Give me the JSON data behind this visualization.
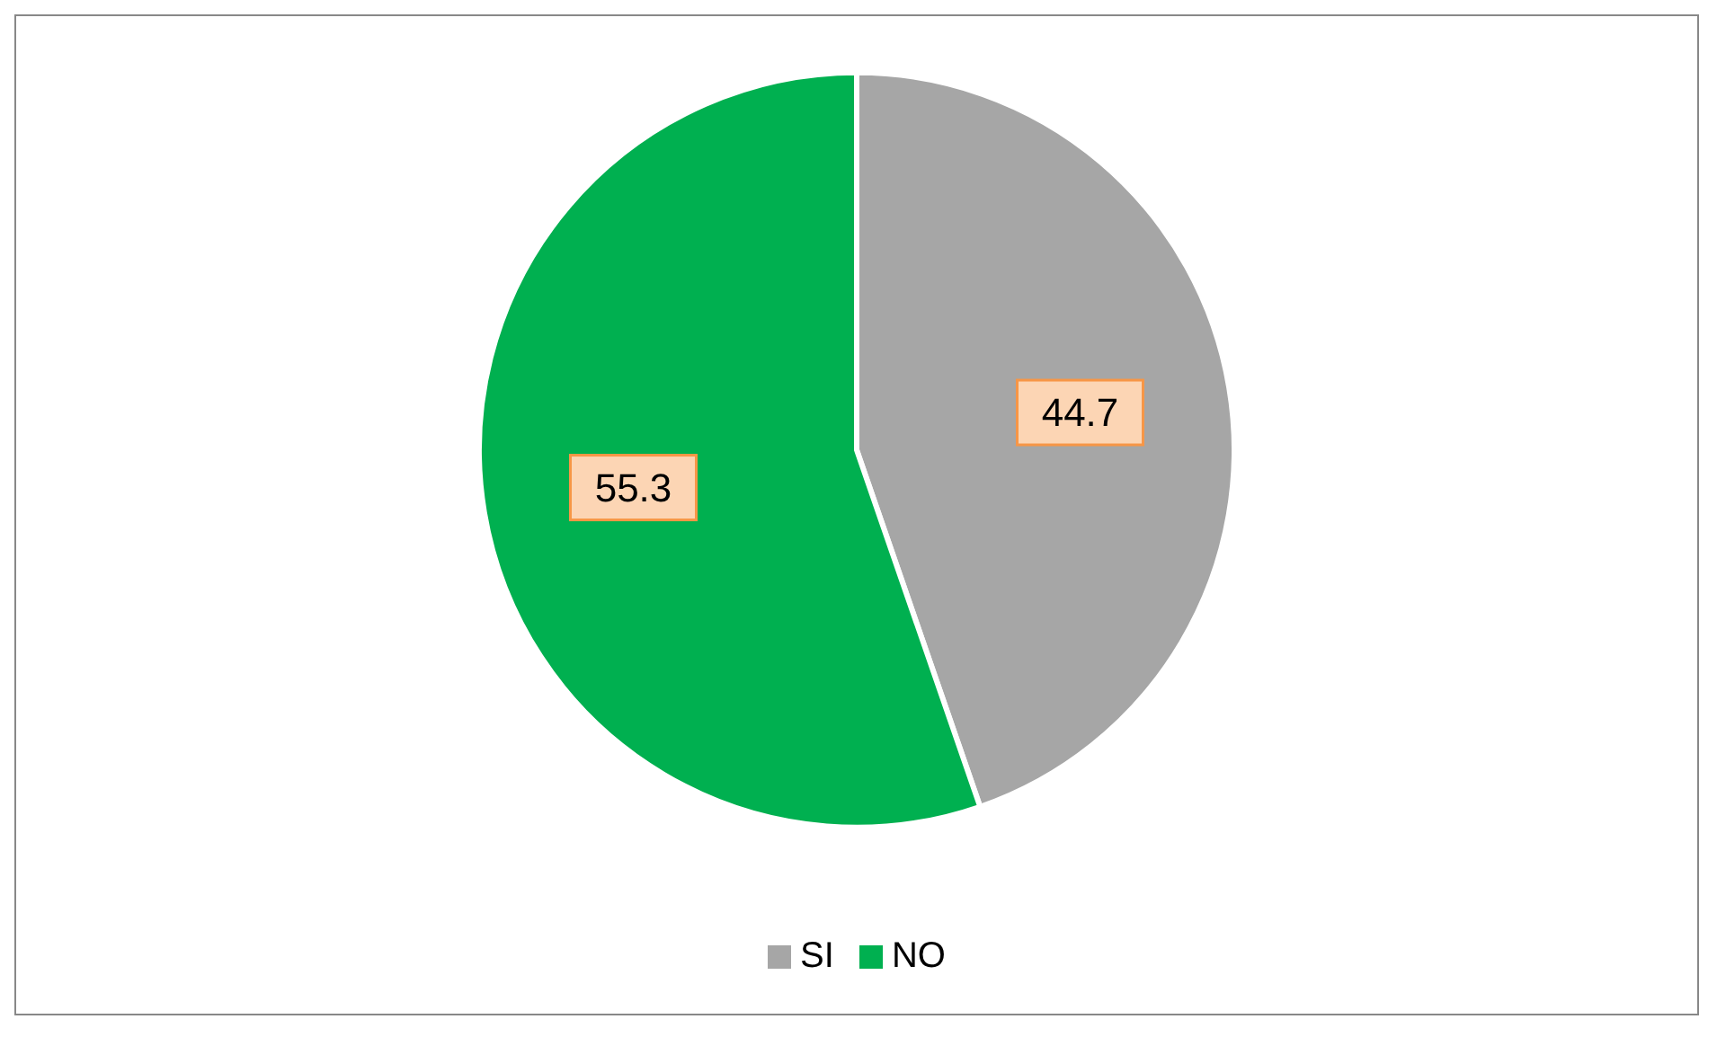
{
  "chart_data": {
    "type": "pie",
    "categories": [
      "SI",
      "NO"
    ],
    "values": [
      44.7,
      55.3
    ],
    "colors": [
      "#a6a6a6",
      "#00b050"
    ],
    "data_labels": true,
    "legend": "bottom"
  }
}
